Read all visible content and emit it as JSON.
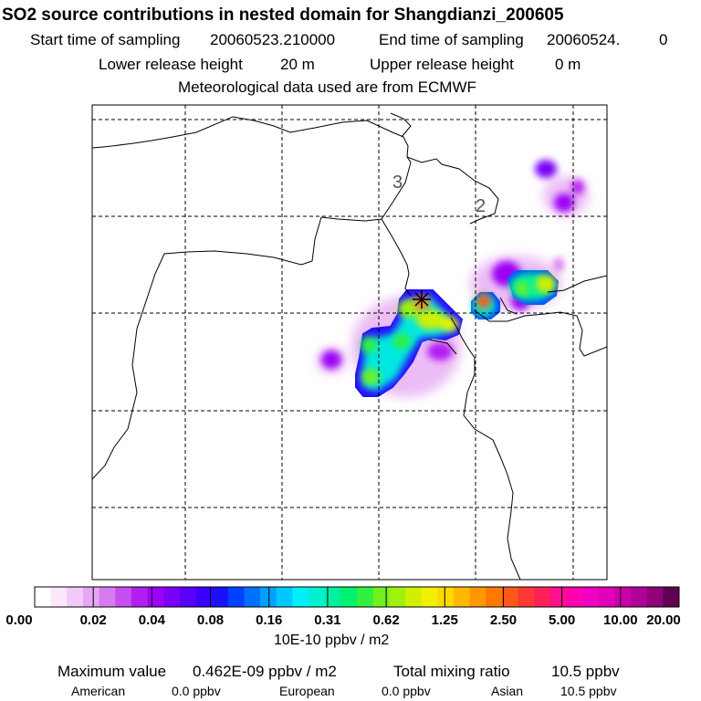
{
  "header": {
    "title": "SO2 source contributions in nested domain for Shangdianzi_200605",
    "start_label": "Start time of sampling",
    "start_value": "20060523.210000",
    "end_label": "End time of sampling",
    "end_value": "20060524.",
    "end_suffix": "0",
    "lower_label": "Lower release height",
    "lower_value": "20 m",
    "upper_label": "Upper release height",
    "upper_value": "0 m",
    "met_text": "Meteorological data used are from ECMWF"
  },
  "map": {
    "grid_labels": [
      "3",
      "2"
    ],
    "colors": {
      "coast": "#000000",
      "grid": "#000000",
      "marker": "#000000"
    }
  },
  "colorbar": {
    "tick_labels": [
      "0.00",
      "0.02",
      "0.04",
      "0.08",
      "0.16",
      "0.31",
      "0.62",
      "1.25",
      "2.50",
      "5.00",
      "10.00",
      "20.00"
    ],
    "colors": [
      "#ffffff",
      "#fbe6fb",
      "#f3c9f7",
      "#e6a6f3",
      "#d67cf0",
      "#c44ef0",
      "#b21ef0",
      "#9c00f5",
      "#7a00f7",
      "#5a00f8",
      "#3a00fa",
      "#1a10fc",
      "#0040ff",
      "#0070ff",
      "#00a0ff",
      "#00c8ff",
      "#00f0f8",
      "#00f0d0",
      "#00f0a0",
      "#00f070",
      "#30f040",
      "#70f020",
      "#a0f010",
      "#d0f000",
      "#f0f000",
      "#ffd800",
      "#ffb800",
      "#ff9800",
      "#ff7800",
      "#ff5818",
      "#ff3838",
      "#ff2058",
      "#ff1090",
      "#ff00b0",
      "#f000c0",
      "#e000b8",
      "#c800a8",
      "#b00098",
      "#900078",
      "#600050"
    ],
    "units": "10E-10 ppbv / m2"
  },
  "stats": {
    "max_label": "Maximum value",
    "max_value": "0.462E-09 ppbv / m2",
    "total_label": "Total mixing ratio",
    "total_value": "10.5 ppbv",
    "regions": [
      {
        "name": "American",
        "value": "0.0 ppbv"
      },
      {
        "name": "European",
        "value": "0.0 ppbv"
      },
      {
        "name": "Asian",
        "value": "10.5 ppbv"
      }
    ]
  }
}
